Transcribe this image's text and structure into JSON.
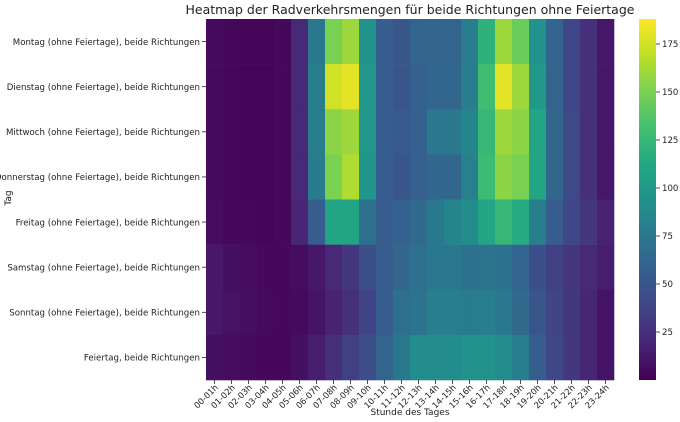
{
  "chart_data": {
    "type": "heatmap",
    "title": "Heatmap der Radverkehrsmengen für beide Richtungen ohne Feiertage",
    "xlabel": "Stunde des Tages",
    "ylabel": "Tag",
    "x": [
      "00-01h",
      "01-02h",
      "02-03h",
      "03-04h",
      "04-05h",
      "05-06h",
      "06-07h",
      "07-08h",
      "08-09h",
      "09-10h",
      "10-11h",
      "11-12h",
      "12-13h",
      "13-14h",
      "14-15h",
      "15-16h",
      "16-17h",
      "17-18h",
      "18-19h",
      "19-20h",
      "20-21h",
      "21-22h",
      "22-23h",
      "23-24h"
    ],
    "y": [
      "Montag (ohne Feiertage), beide Richtungen",
      "Dienstag (ohne Feiertage), beide Richtungen",
      "Mittwoch (ohne Feiertage), beide Richtungen",
      "Donnerstag (ohne Feiertage), beide Richtungen",
      "Freitag (ohne Feiertage), beide Richtungen",
      "Samstag (ohne Feiertage), beide Richtungen",
      "Sonntag (ohne Feiertage), beide Richtungen",
      "Feiertag, beide Richtungen"
    ],
    "rows": [
      {
        "values": [
          5,
          3,
          2,
          2,
          4,
          22,
          75,
          150,
          160,
          95,
          55,
          50,
          60,
          62,
          60,
          80,
          120,
          160,
          145,
          95,
          60,
          40,
          25,
          12
        ]
      },
      {
        "values": [
          5,
          3,
          2,
          2,
          4,
          22,
          80,
          175,
          180,
          100,
          55,
          50,
          58,
          62,
          62,
          80,
          130,
          180,
          160,
          100,
          60,
          40,
          25,
          12
        ]
      },
      {
        "values": [
          5,
          3,
          2,
          2,
          4,
          22,
          80,
          155,
          160,
          100,
          55,
          52,
          58,
          75,
          75,
          85,
          125,
          160,
          155,
          110,
          62,
          42,
          25,
          12
        ]
      },
      {
        "values": [
          5,
          3,
          2,
          2,
          4,
          22,
          78,
          150,
          165,
          98,
          55,
          50,
          58,
          62,
          62,
          82,
          128,
          155,
          150,
          110,
          62,
          42,
          25,
          12
        ]
      },
      {
        "values": [
          6,
          4,
          3,
          2,
          4,
          20,
          55,
          110,
          110,
          70,
          55,
          58,
          65,
          75,
          85,
          90,
          110,
          125,
          115,
          80,
          55,
          40,
          30,
          18
        ]
      },
      {
        "values": [
          12,
          8,
          6,
          4,
          4,
          6,
          12,
          22,
          30,
          45,
          55,
          62,
          70,
          75,
          75,
          70,
          72,
          70,
          60,
          45,
          35,
          30,
          22,
          15
        ]
      },
      {
        "values": [
          12,
          9,
          7,
          5,
          4,
          5,
          10,
          18,
          25,
          38,
          55,
          68,
          72,
          80,
          80,
          78,
          80,
          75,
          65,
          50,
          38,
          30,
          20,
          10
        ]
      },
      {
        "values": [
          8,
          6,
          5,
          4,
          4,
          8,
          15,
          25,
          35,
          45,
          60,
          75,
          90,
          90,
          92,
          95,
          95,
          90,
          80,
          55,
          40,
          30,
          20,
          10
        ]
      }
    ],
    "colorbar": {
      "min": 0,
      "max": 188,
      "ticks": [
        25,
        50,
        75,
        100,
        125,
        150,
        175
      ],
      "colormap": "viridis"
    }
  }
}
